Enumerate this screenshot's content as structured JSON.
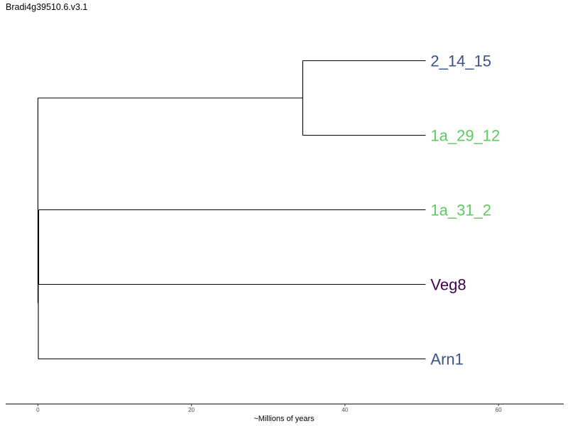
{
  "title": "Bradi4g39510.6.v3.1",
  "chart_data": {
    "type": "tree",
    "title": "Bradi4g39510.6.v3.1",
    "xlabel": "~Millions of years",
    "xlim": [
      -4.2,
      68.5
    ],
    "xticks": [
      0,
      20,
      40,
      60
    ],
    "tips": [
      {
        "name": "2_14_15",
        "color": "#3b528b"
      },
      {
        "name": "1a_29_12",
        "color": "#5ec962"
      },
      {
        "name": "1a_31_2",
        "color": "#5ec962"
      },
      {
        "name": "Veg8",
        "color": "#440154"
      },
      {
        "name": "Arn1",
        "color": "#3b528b"
      }
    ],
    "tip_age": 50.5,
    "nodes": [
      {
        "id": "root",
        "age": 0,
        "children": [
          "cladeA",
          "cladeB"
        ]
      },
      {
        "id": "cladeA",
        "age": 34.5,
        "children": [
          "2_14_15",
          "1a_29_12"
        ]
      },
      {
        "id": "cladeB",
        "age": 0.05,
        "children": [
          "cladeC",
          "Arn1"
        ]
      },
      {
        "id": "cladeC",
        "age": 0.1,
        "children": [
          "1a_31_2",
          "Veg8"
        ]
      }
    ],
    "grid": false
  }
}
